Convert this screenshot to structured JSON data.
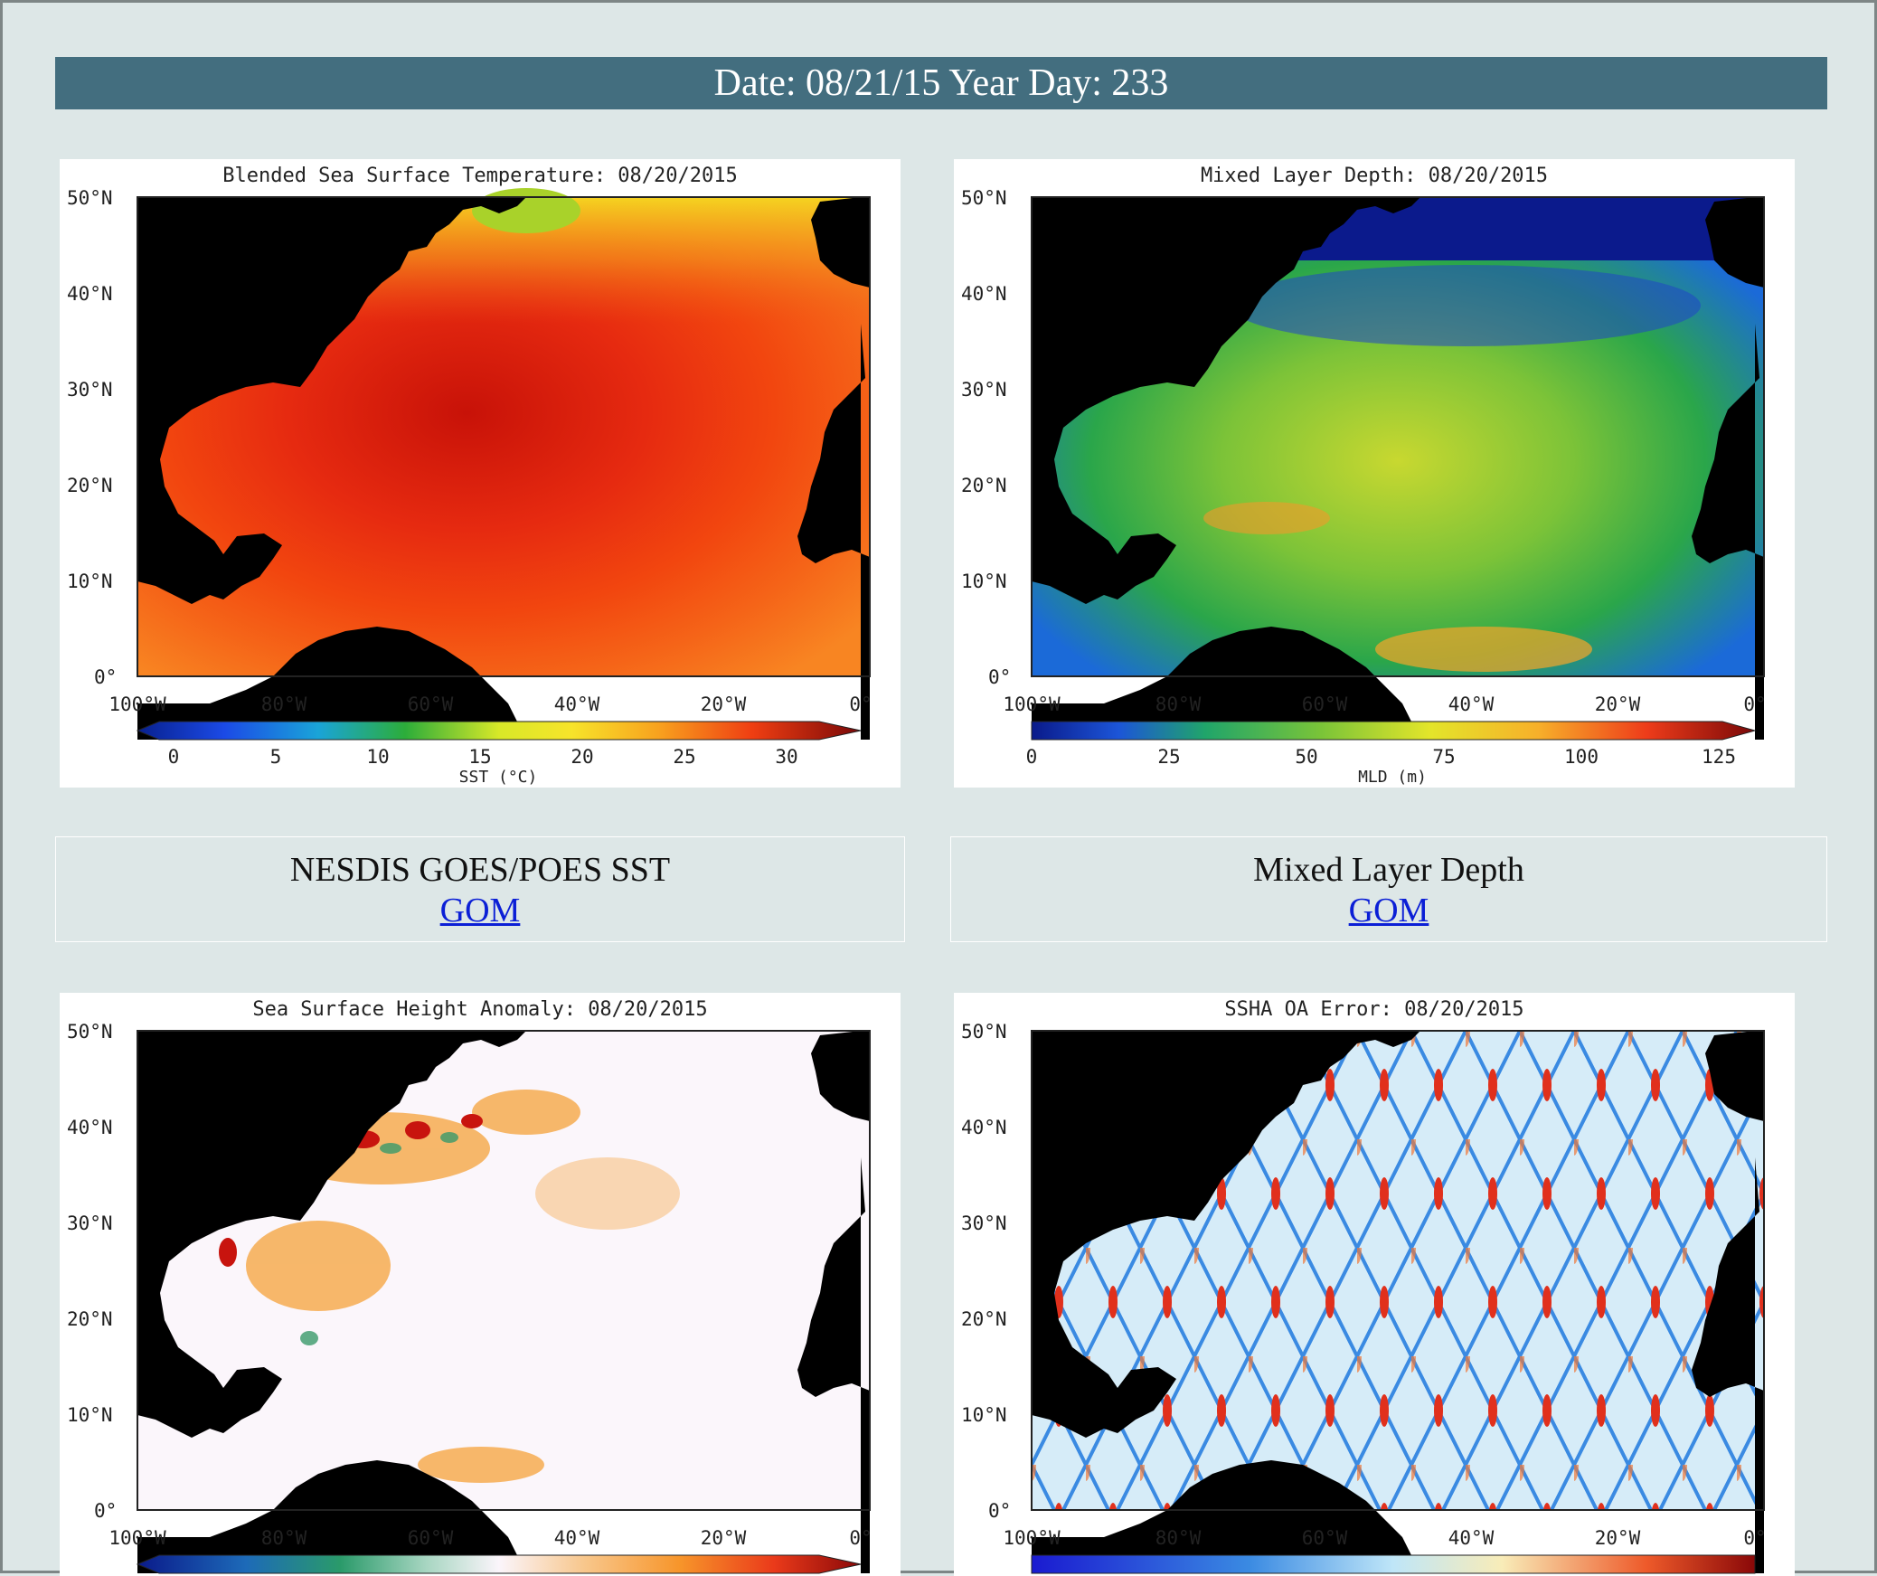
{
  "header": {
    "date_text": "Date: 08/21/15 Year Day: 233"
  },
  "colors": {
    "header_bg": "#436e7f",
    "page_bg": "#dde7e7",
    "link": "#0b1fd6"
  },
  "panels": [
    {
      "title": "Blended Sea Surface Temperature: 08/20/2015",
      "lat_labels": [
        "50°N",
        "40°N",
        "30°N",
        "20°N",
        "10°N",
        "0°"
      ],
      "lon_labels": [
        "100°W",
        "80°W",
        "60°W",
        "40°W",
        "20°W",
        "0°"
      ],
      "cbar_ticks": [
        "0",
        "5",
        "10",
        "15",
        "20",
        "25",
        "30"
      ],
      "cbar_label": "SST (°C)"
    },
    {
      "title": "Mixed Layer Depth: 08/20/2015",
      "lat_labels": [
        "50°N",
        "40°N",
        "30°N",
        "20°N",
        "10°N",
        "0°"
      ],
      "lon_labels": [
        "100°W",
        "80°W",
        "60°W",
        "40°W",
        "20°W",
        "0°"
      ],
      "cbar_ticks": [
        "0",
        "25",
        "50",
        "75",
        "100",
        "125"
      ],
      "cbar_label": "MLD (m)"
    },
    {
      "title": "Sea Surface Height Anomaly: 08/20/2015",
      "lat_labels": [
        "50°N",
        "40°N",
        "30°N",
        "20°N",
        "10°N",
        "0°"
      ],
      "lon_labels": [
        "100°W",
        "80°W",
        "60°W",
        "40°W",
        "20°W",
        "0°"
      ]
    },
    {
      "title": "SSHA OA Error: 08/20/2015",
      "lat_labels": [
        "50°N",
        "40°N",
        "30°N",
        "20°N",
        "10°N",
        "0°"
      ],
      "lon_labels": [
        "100°W",
        "80°W",
        "60°W",
        "40°W",
        "20°W",
        "0°"
      ]
    }
  ],
  "captions": [
    {
      "title": "NESDIS GOES/POES SST",
      "link": "GOM"
    },
    {
      "title": "Mixed Layer Depth",
      "link": "GOM"
    }
  ]
}
